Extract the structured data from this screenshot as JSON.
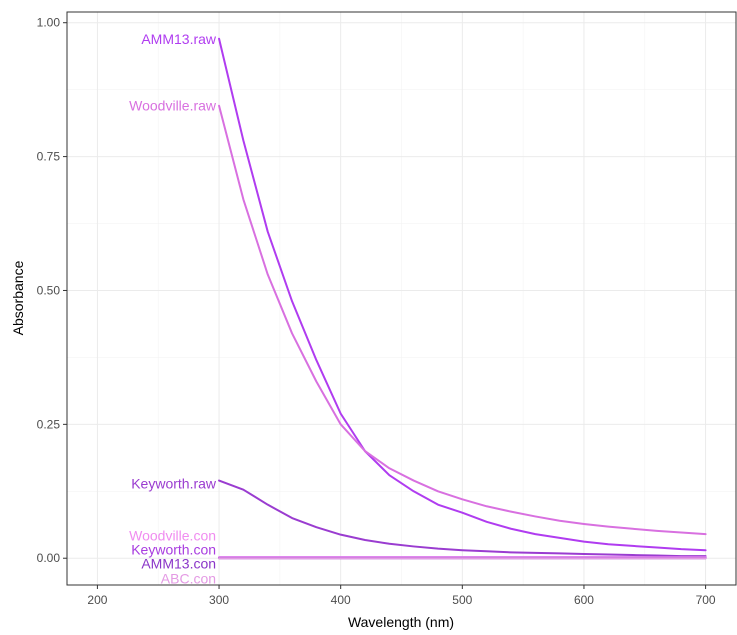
{
  "chart_data": {
    "type": "line",
    "title": "",
    "xlabel": "Wavelength (nm)",
    "ylabel": "Absorbance",
    "xlim": [
      175,
      725
    ],
    "ylim": [
      -0.05,
      1.02
    ],
    "x_ticks": [
      200,
      300,
      400,
      500,
      600,
      700
    ],
    "y_ticks": [
      0.0,
      0.25,
      0.5,
      0.75,
      1.0
    ],
    "x_tick_labels": [
      "200",
      "300",
      "400",
      "500",
      "600",
      "700"
    ],
    "y_tick_labels": [
      "0.00",
      "0.25",
      "0.50",
      "0.75",
      "1.00"
    ],
    "grid": true,
    "legend": "none",
    "x": [
      300,
      320,
      340,
      360,
      380,
      400,
      420,
      440,
      460,
      480,
      500,
      520,
      540,
      560,
      580,
      600,
      620,
      640,
      660,
      680,
      700
    ],
    "series": [
      {
        "name": "AMM13.raw",
        "color": "#b03cf0",
        "label_y": 0.97,
        "values": [
          0.97,
          0.78,
          0.61,
          0.48,
          0.37,
          0.27,
          0.2,
          0.155,
          0.125,
          0.1,
          0.085,
          0.068,
          0.055,
          0.045,
          0.038,
          0.031,
          0.026,
          0.023,
          0.02,
          0.017,
          0.015
        ]
      },
      {
        "name": "Woodville.raw",
        "color": "#d870e0",
        "label_y": 0.845,
        "values": [
          0.845,
          0.67,
          0.53,
          0.42,
          0.33,
          0.25,
          0.2,
          0.168,
          0.145,
          0.125,
          0.11,
          0.097,
          0.087,
          0.078,
          0.07,
          0.064,
          0.059,
          0.055,
          0.051,
          0.048,
          0.045
        ]
      },
      {
        "name": "Keyworth.raw",
        "color": "#9a3cd0",
        "label_y": 0.14,
        "values": [
          0.145,
          0.128,
          0.1,
          0.075,
          0.058,
          0.044,
          0.034,
          0.027,
          0.022,
          0.018,
          0.015,
          0.013,
          0.011,
          0.01,
          0.009,
          0.008,
          0.007,
          0.006,
          0.005,
          0.004,
          0.004
        ]
      },
      {
        "name": "Woodville.con",
        "color": "#f08cf0",
        "label_y": 0.042,
        "values": [
          0.002,
          0.002,
          0.002,
          0.002,
          0.002,
          0.002,
          0.002,
          0.002,
          0.002,
          0.002,
          0.002,
          0.002,
          0.002,
          0.002,
          0.002,
          0.002,
          0.002,
          0.002,
          0.002,
          0.002,
          0.002
        ]
      },
      {
        "name": "Keyworth.con",
        "color": "#a83ce0",
        "label_y": 0.016,
        "values": [
          0.001,
          0.001,
          0.001,
          0.001,
          0.001,
          0.001,
          0.001,
          0.001,
          0.001,
          0.001,
          0.001,
          0.001,
          0.001,
          0.001,
          0.001,
          0.001,
          0.001,
          0.001,
          0.001,
          0.001,
          0.001
        ]
      },
      {
        "name": "AMM13.con",
        "color": "#8a35c8",
        "label_y": -0.01,
        "values": [
          0.0,
          0.0,
          0.0,
          0.0,
          0.0,
          0.0,
          0.0,
          0.0,
          0.0,
          0.0,
          0.0,
          0.0,
          0.0,
          0.0,
          0.0,
          0.0,
          0.0,
          0.0,
          0.0,
          0.0,
          0.0
        ]
      },
      {
        "name": "ABC.con",
        "color": "#e49ae4",
        "label_y": -0.038,
        "values": [
          0.0,
          0.0,
          0.0,
          0.0,
          0.0,
          0.0,
          0.0,
          0.0,
          0.0,
          0.0,
          0.0,
          0.0,
          0.0,
          0.0,
          0.0,
          0.0,
          0.0,
          0.0,
          0.0,
          0.0,
          0.0
        ]
      }
    ]
  }
}
